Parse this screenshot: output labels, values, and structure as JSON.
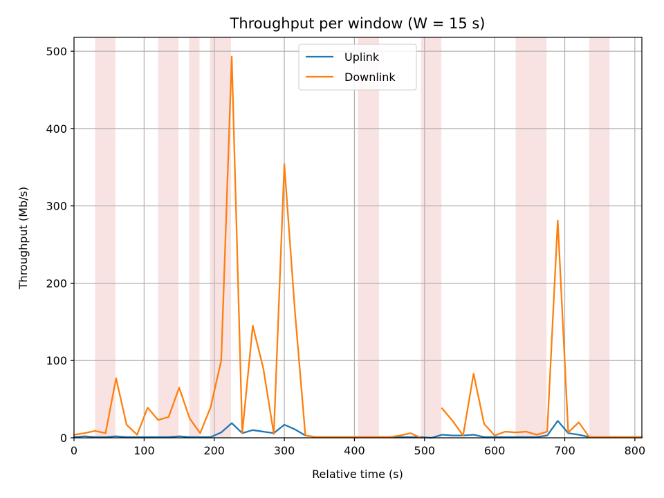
{
  "chart_data": {
    "type": "line",
    "title": "Throughput per window (W = 15 s)",
    "xlabel": "Relative time (s)",
    "ylabel": "Throughput (Mb/s)",
    "xlim": [
      0,
      810
    ],
    "ylim": [
      0,
      518
    ],
    "xticks": [
      0,
      100,
      200,
      300,
      400,
      500,
      600,
      700,
      800
    ],
    "yticks": [
      0,
      100,
      200,
      300,
      400,
      500
    ],
    "grid": true,
    "legend_position": "top-center",
    "shaded_intervals": [
      [
        30,
        59
      ],
      [
        120,
        149
      ],
      [
        164,
        179
      ],
      [
        194,
        224
      ],
      [
        405,
        435
      ],
      [
        495,
        524
      ],
      [
        630,
        674
      ],
      [
        735,
        764
      ]
    ],
    "shade_color": "#f9e2e2",
    "series": [
      {
        "name": "Uplink",
        "color": "#1f77b4",
        "x": [
          0,
          15,
          30,
          45,
          60,
          75,
          90,
          105,
          120,
          135,
          150,
          165,
          180,
          195,
          210,
          225,
          240,
          255,
          270,
          285,
          300,
          315,
          330,
          345,
          360,
          375,
          390,
          405,
          420,
          435,
          450,
          465,
          480,
          495,
          510,
          525,
          540,
          555,
          570,
          585,
          600,
          615,
          630,
          645,
          660,
          675,
          690,
          705,
          720,
          735,
          750,
          765,
          780,
          795,
          810
        ],
        "y": [
          1,
          2,
          1,
          1,
          2,
          1,
          1,
          1,
          1,
          1,
          2,
          1,
          1,
          1,
          7,
          19,
          6,
          10,
          8,
          6,
          17,
          11,
          3,
          1,
          1,
          1,
          1,
          1,
          1,
          1,
          1,
          1,
          1,
          1,
          0,
          4,
          3,
          3,
          4,
          1,
          1,
          1,
          1,
          1,
          1,
          3,
          22,
          6,
          4,
          1,
          1,
          1,
          1,
          1,
          1
        ]
      },
      {
        "name": "Downlink",
        "color": "#ff7f0e",
        "x": [
          0,
          15,
          30,
          45,
          60,
          75,
          90,
          105,
          120,
          135,
          150,
          165,
          180,
          195,
          210,
          225,
          240,
          255,
          270,
          285,
          300,
          315,
          330,
          345,
          360,
          375,
          390,
          405,
          420,
          435,
          450,
          465,
          480,
          495,
          510,
          525,
          540,
          555,
          570,
          585,
          600,
          615,
          630,
          645,
          660,
          675,
          690,
          705,
          720,
          735,
          750,
          765,
          780,
          795,
          810
        ],
        "y": [
          4,
          6,
          9,
          6,
          77,
          17,
          4,
          39,
          23,
          27,
          65,
          25,
          6,
          40,
          100,
          493,
          6,
          145,
          90,
          5,
          354,
          165,
          3,
          1,
          1,
          1,
          1,
          1,
          1,
          1,
          1,
          3,
          6,
          0,
          null,
          38,
          22,
          3,
          83,
          18,
          3,
          8,
          7,
          8,
          4,
          8,
          281,
          7,
          20,
          1,
          1,
          1,
          1,
          1,
          1
        ]
      }
    ]
  }
}
